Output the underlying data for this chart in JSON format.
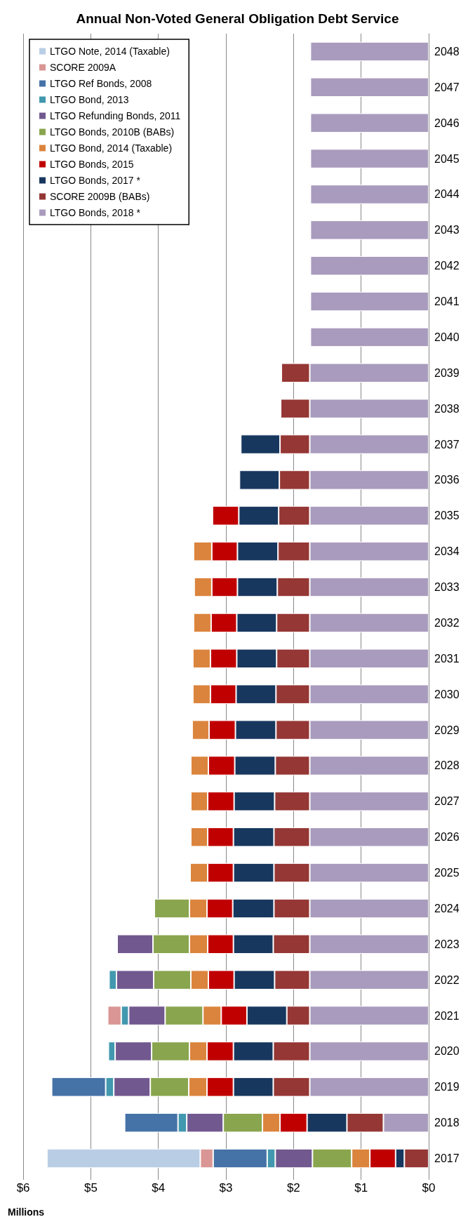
{
  "chart_data": {
    "type": "bar",
    "title": "Annual Non-Voted General Obligation Debt Service",
    "xlabel": "Millions",
    "stacked": true,
    "orientation": "horizontal",
    "categories": [
      "2048",
      "2047",
      "2046",
      "2045",
      "2044",
      "2043",
      "2042",
      "2041",
      "2040",
      "2039",
      "2038",
      "2037",
      "2036",
      "2035",
      "2034",
      "2033",
      "2032",
      "2031",
      "2030",
      "2029",
      "2028",
      "2027",
      "2026",
      "2025",
      "2024",
      "2023",
      "2022",
      "2021",
      "2020",
      "2019",
      "2018",
      "2017"
    ],
    "series": [
      {
        "name": "LTGO Bonds, 2018 *",
        "color": "#a99bbd",
        "values": [
          1.75,
          1.75,
          1.75,
          1.75,
          1.75,
          1.75,
          1.75,
          1.75,
          1.75,
          1.76,
          1.76,
          1.76,
          1.76,
          1.76,
          1.76,
          1.76,
          1.76,
          1.76,
          1.76,
          1.76,
          1.76,
          1.76,
          1.76,
          1.76,
          1.76,
          1.76,
          1.76,
          1.76,
          1.76,
          1.76,
          0.67,
          null
        ]
      },
      {
        "name": "SCORE 2009B (BABs)",
        "color": "#953735",
        "values": [
          null,
          null,
          null,
          null,
          null,
          null,
          null,
          null,
          null,
          0.42,
          0.43,
          0.44,
          0.45,
          0.46,
          0.47,
          0.48,
          0.49,
          0.49,
          0.5,
          0.5,
          0.51,
          0.52,
          0.53,
          0.53,
          0.53,
          0.54,
          0.52,
          0.34,
          0.54,
          0.54,
          0.54,
          0.36
        ]
      },
      {
        "name": "LTGO Bonds, 2017 *",
        "color": "#17375e",
        "values": [
          null,
          null,
          null,
          null,
          null,
          null,
          null,
          null,
          null,
          null,
          null,
          0.58,
          0.59,
          0.59,
          0.6,
          0.59,
          0.59,
          0.59,
          0.59,
          0.6,
          0.6,
          0.6,
          0.6,
          0.6,
          0.61,
          0.59,
          0.6,
          0.59,
          0.59,
          0.59,
          0.59,
          0.13
        ]
      },
      {
        "name": "LTGO Bonds, 2015",
        "color": "#c00000",
        "values": [
          null,
          null,
          null,
          null,
          null,
          null,
          null,
          null,
          null,
          null,
          null,
          null,
          null,
          0.39,
          0.38,
          0.38,
          0.38,
          0.39,
          0.38,
          0.39,
          0.39,
          0.39,
          0.38,
          0.38,
          0.38,
          0.38,
          0.38,
          0.38,
          0.39,
          0.39,
          0.4,
          0.38
        ]
      },
      {
        "name": "LTGO Bond, 2014 (Taxable)",
        "color": "#db843d",
        "values": [
          null,
          null,
          null,
          null,
          null,
          null,
          null,
          null,
          null,
          null,
          null,
          null,
          null,
          null,
          0.27,
          0.26,
          0.26,
          0.26,
          0.26,
          0.25,
          0.26,
          0.25,
          0.25,
          0.26,
          0.26,
          0.27,
          0.26,
          0.27,
          0.26,
          0.27,
          0.26,
          0.27
        ]
      },
      {
        "name": "LTGO Bonds, 2010B (BABs)",
        "color": "#89a54e",
        "values": [
          null,
          null,
          null,
          null,
          null,
          null,
          null,
          null,
          null,
          null,
          null,
          null,
          null,
          null,
          null,
          null,
          null,
          null,
          null,
          null,
          null,
          null,
          null,
          null,
          0.52,
          0.54,
          0.55,
          0.56,
          0.56,
          0.57,
          0.58,
          0.58
        ]
      },
      {
        "name": "LTGO Refunding Bonds, 2011",
        "color": "#71588f",
        "values": [
          null,
          null,
          null,
          null,
          null,
          null,
          null,
          null,
          null,
          null,
          null,
          null,
          null,
          null,
          null,
          null,
          null,
          null,
          null,
          null,
          null,
          null,
          null,
          null,
          null,
          0.53,
          0.55,
          0.54,
          0.54,
          0.54,
          0.54,
          0.55
        ]
      },
      {
        "name": "LTGO Bond, 2013",
        "color": "#4198af",
        "values": [
          null,
          null,
          null,
          null,
          null,
          null,
          null,
          null,
          null,
          null,
          null,
          null,
          null,
          null,
          null,
          null,
          null,
          null,
          null,
          null,
          null,
          null,
          null,
          null,
          null,
          null,
          0.11,
          0.11,
          0.1,
          0.12,
          0.13,
          0.12
        ]
      },
      {
        "name": "LTGO Ref Bonds, 2008",
        "color": "#4572a7",
        "values": [
          null,
          null,
          null,
          null,
          null,
          null,
          null,
          null,
          null,
          null,
          null,
          null,
          null,
          null,
          null,
          null,
          null,
          null,
          null,
          null,
          null,
          null,
          null,
          null,
          null,
          null,
          null,
          null,
          null,
          0.8,
          0.79,
          0.8
        ]
      },
      {
        "name": "SCORE 2009A",
        "color": "#d99694",
        "values": [
          null,
          null,
          null,
          null,
          null,
          null,
          null,
          null,
          null,
          null,
          null,
          null,
          null,
          null,
          null,
          null,
          null,
          null,
          null,
          null,
          null,
          null,
          null,
          null,
          null,
          null,
          null,
          0.2,
          null,
          null,
          null,
          0.19
        ]
      },
      {
        "name": "LTGO Note, 2014 (Taxable)",
        "color": "#b9cde5",
        "values": [
          null,
          null,
          null,
          null,
          null,
          null,
          null,
          null,
          null,
          null,
          null,
          null,
          null,
          null,
          null,
          null,
          null,
          null,
          null,
          null,
          null,
          null,
          null,
          null,
          null,
          null,
          null,
          null,
          null,
          null,
          null,
          2.27
        ]
      }
    ],
    "xlim": [
      6,
      0
    ],
    "xticks": [
      {
        "value": 6,
        "label": "$6"
      },
      {
        "value": 5,
        "label": "$5"
      },
      {
        "value": 4,
        "label": "$4"
      },
      {
        "value": 3,
        "label": "$3"
      },
      {
        "value": 2,
        "label": "$2"
      },
      {
        "value": 1,
        "label": "$1"
      },
      {
        "value": 0,
        "label": "$0"
      }
    ],
    "grid": "x",
    "legend": "top left"
  }
}
